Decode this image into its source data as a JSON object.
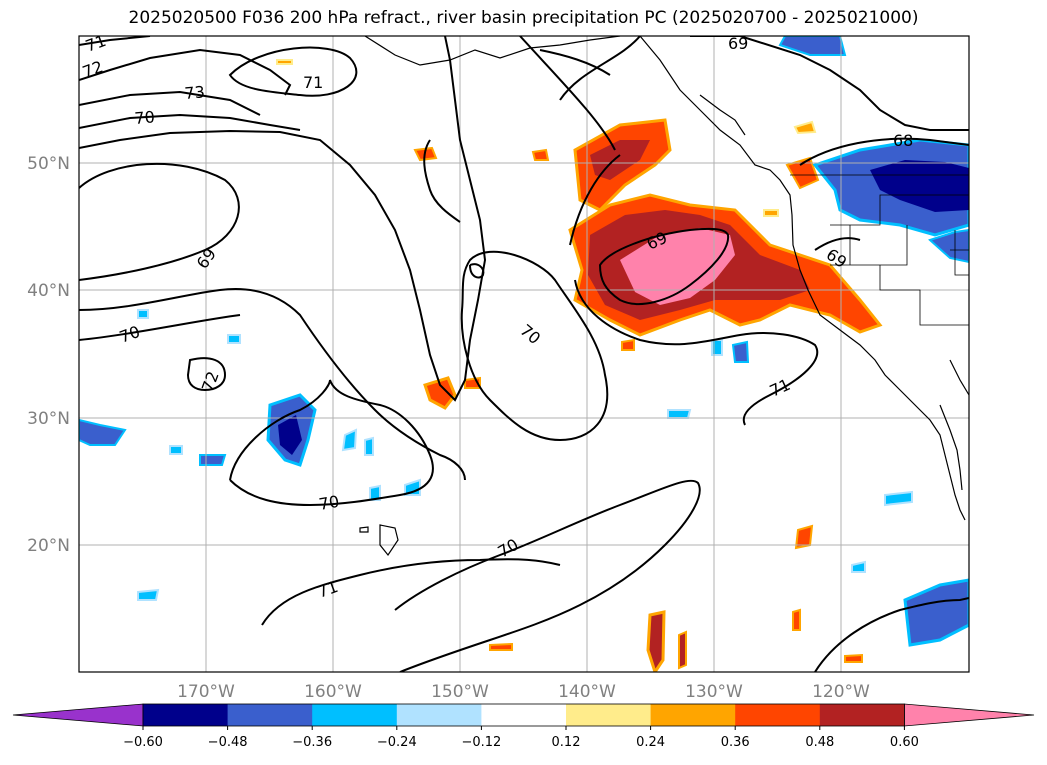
{
  "title": "2025020500 F036 200 hPa refract., river basin precipitation PC (2025020700 - 2025021000)",
  "lat_labels": [
    "50°N",
    "40°N",
    "30°N",
    "20°N"
  ],
  "lon_labels": [
    "170°W",
    "160°W",
    "150°W",
    "140°W",
    "130°W",
    "120°W"
  ],
  "colorbar": {
    "colors": [
      "#9932CC",
      "#00008B",
      "#3A5FCD",
      "#00BFFF",
      "#B0E2FF",
      "#FFFFFF",
      "#FFEC8B",
      "#FFA500",
      "#FF4500",
      "#B22222",
      "#FF82AB"
    ],
    "tick_labels": [
      "−0.60",
      "−0.48",
      "−0.36",
      "−0.24",
      "−0.12",
      "0.12",
      "0.24",
      "0.36",
      "0.48",
      "0.60"
    ]
  },
  "contour_labels": [
    "71",
    "72",
    "73",
    "71",
    "70",
    "69",
    "68",
    "69",
    "70",
    "72",
    "70",
    "69",
    "69",
    "70",
    "71",
    "70",
    "71"
  ]
}
